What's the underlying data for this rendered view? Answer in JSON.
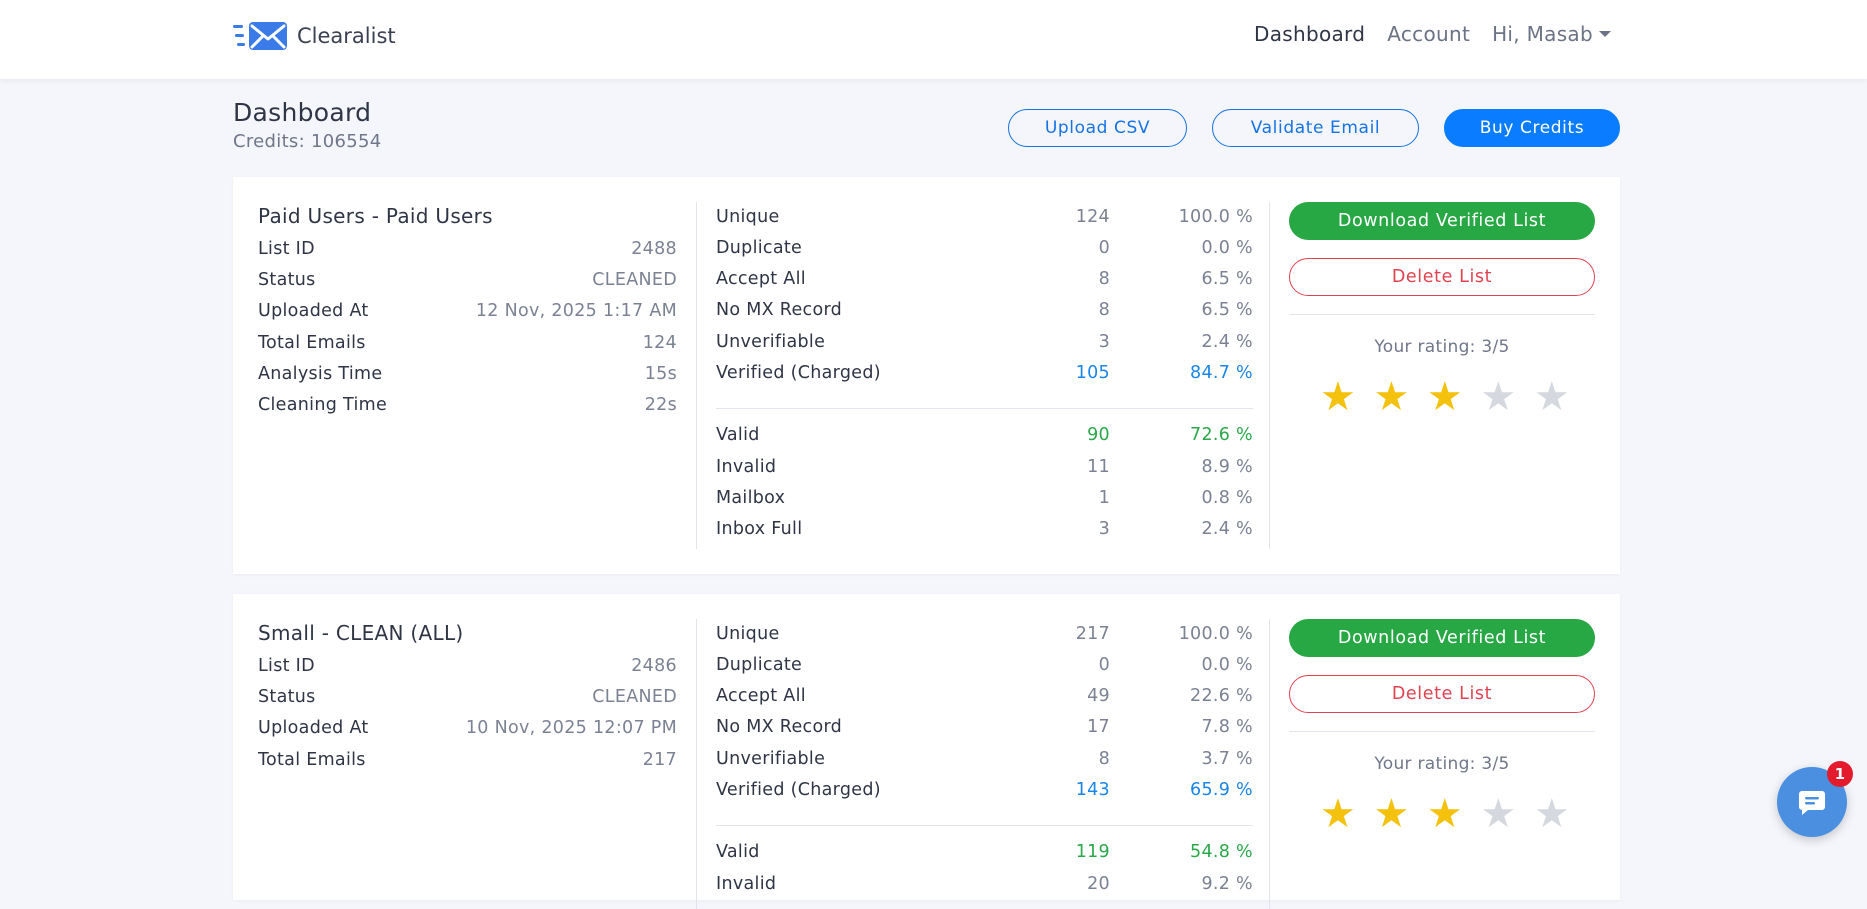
{
  "brand": {
    "name": "Clearalist",
    "color": "#3b7be8"
  },
  "nav": {
    "links": [
      {
        "label": "Dashboard",
        "active": true
      },
      {
        "label": "Account",
        "active": false
      }
    ],
    "user_menu": "Hi, Masab"
  },
  "header": {
    "title": "Dashboard",
    "credits": "Credits: 106554",
    "buttons": {
      "upload": "Upload CSV",
      "validate": "Validate Email",
      "buy": "Buy Credits"
    }
  },
  "lists": [
    {
      "name": "Paid Users - Paid Users",
      "info": [
        {
          "label": "List ID",
          "value": "2488"
        },
        {
          "label": "Status",
          "value": "CLEANED"
        },
        {
          "label": "Uploaded At",
          "value": "12 Nov, 2025 1:17 AM"
        },
        {
          "label": "Total Emails",
          "value": "124"
        },
        {
          "label": "Analysis Time",
          "value": "15s"
        },
        {
          "label": "Cleaning Time",
          "value": "22s"
        }
      ],
      "stats": [
        {
          "label": "Unique",
          "count": "124",
          "pct": "100.0 %"
        },
        {
          "label": "Duplicate",
          "count": "0",
          "pct": "0.0 %"
        },
        {
          "label": "Accept All",
          "count": "8",
          "pct": "6.5 %"
        },
        {
          "label": "No MX Record",
          "count": "8",
          "pct": "6.5 %"
        },
        {
          "label": "Unverifiable",
          "count": "3",
          "pct": "2.4 %"
        },
        {
          "label": "Verified (Charged)",
          "count": "105",
          "pct": "84.7 %"
        }
      ],
      "results": [
        {
          "label": "Valid",
          "count": "90",
          "pct": "72.6 %"
        },
        {
          "label": "Invalid",
          "count": "11",
          "pct": "8.9 %"
        },
        {
          "label": "Mailbox",
          "count": "1",
          "pct": "0.8 %"
        },
        {
          "label": "Inbox Full",
          "count": "3",
          "pct": "2.4 %"
        }
      ],
      "download_label": "Download Verified List",
      "delete_label": "Delete List",
      "rating_text": "Your rating: 3/5",
      "rating": 3
    },
    {
      "name": "Small - CLEAN (ALL)",
      "info": [
        {
          "label": "List ID",
          "value": "2486"
        },
        {
          "label": "Status",
          "value": "CLEANED"
        },
        {
          "label": "Uploaded At",
          "value": "10 Nov, 2025 12:07 PM"
        },
        {
          "label": "Total Emails",
          "value": "217"
        }
      ],
      "stats": [
        {
          "label": "Unique",
          "count": "217",
          "pct": "100.0 %"
        },
        {
          "label": "Duplicate",
          "count": "0",
          "pct": "0.0 %"
        },
        {
          "label": "Accept All",
          "count": "49",
          "pct": "22.6 %"
        },
        {
          "label": "No MX Record",
          "count": "17",
          "pct": "7.8 %"
        },
        {
          "label": "Unverifiable",
          "count": "8",
          "pct": "3.7 %"
        },
        {
          "label": "Verified (Charged)",
          "count": "143",
          "pct": "65.9 %"
        }
      ],
      "results": [
        {
          "label": "Valid",
          "count": "119",
          "pct": "54.8 %"
        },
        {
          "label": "Invalid",
          "count": "20",
          "pct": "9.2 %"
        }
      ],
      "download_label": "Download Verified List",
      "delete_label": "Delete List",
      "rating_text": "Your rating: 3/5",
      "rating": 3
    }
  ],
  "chat": {
    "badge": "1"
  },
  "colors": {
    "primary": "#0a7cff",
    "success": "#28a745",
    "danger": "#e04350",
    "star": "#f4c20d"
  }
}
